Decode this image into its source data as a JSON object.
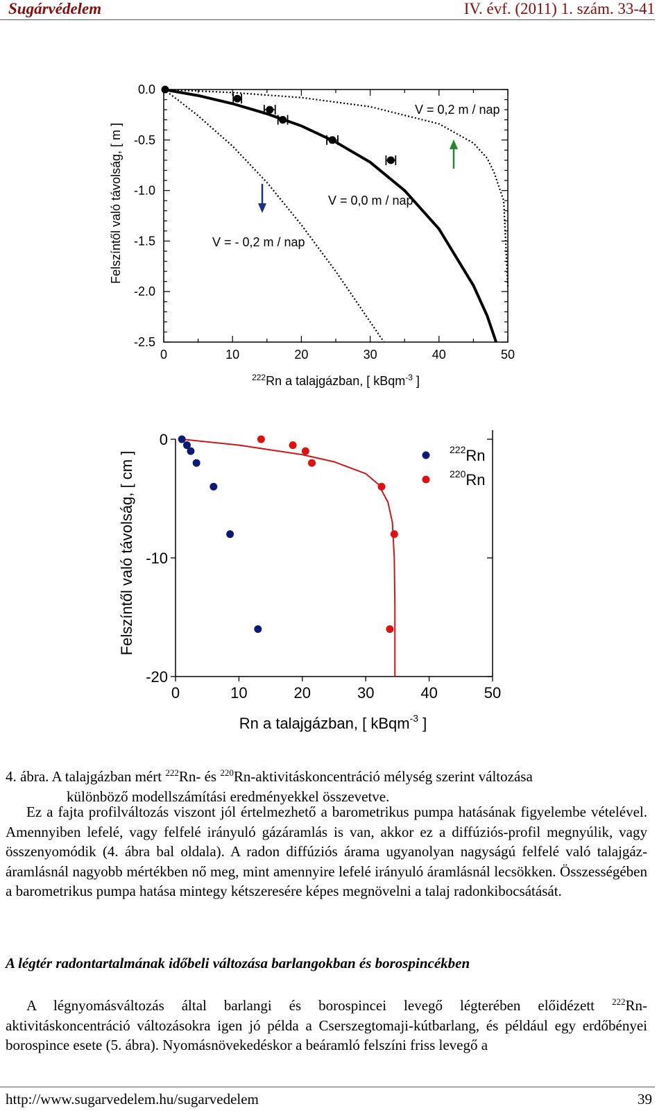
{
  "header": {
    "journal": "Sugárvédelem",
    "issue": "IV. évf. (2011) 1. szám. 33-41"
  },
  "figure1": {
    "ylabel": "Felszíntől való távolság, [ m ]",
    "xlabel_sup": "222",
    "xlabel_main": "Rn a talajgázban, [ kBqm",
    "xlabel_exp": "-3",
    "xlabel_end": " ]",
    "xticks": [
      "0",
      "10",
      "20",
      "30",
      "40",
      "50"
    ],
    "yticks": [
      "0.0",
      "-0.5",
      "-1.0",
      "-1.5",
      "-2.0",
      "-2.5"
    ],
    "annotations": {
      "v_pos": "V = 0,2 m / nap",
      "v_zero": "V = 0,0 m / nap",
      "v_neg": "V = - 0,2 m / nap"
    }
  },
  "figure2": {
    "ylabel": "Felszíntől való távolság, [ cm ]",
    "xlabel_main": "Rn a talajgázban, [ kBqm",
    "xlabel_exp": "-3",
    "xlabel_end": " ]",
    "xticks": [
      "0",
      "10",
      "20",
      "30",
      "40",
      "50"
    ],
    "yticks": [
      "0",
      "-10",
      "-20"
    ],
    "legend": [
      {
        "sup": "222",
        "label": "Rn",
        "color": "#0b1a78"
      },
      {
        "sup": "220",
        "label": "Rn",
        "color": "#e01010"
      }
    ]
  },
  "chart_data": [
    {
      "type": "line",
      "xlabel": "222Rn a talajgázban, [ kBqm-3 ]",
      "ylabel": "Felszíntől való távolság, [ m ]",
      "xlim": [
        0,
        50
      ],
      "ylim": [
        -2.5,
        0.0
      ],
      "series": [
        {
          "name": "V = 0,0 m / nap",
          "x": [
            0,
            5,
            10,
            15,
            20,
            25,
            30,
            35,
            40,
            45,
            47,
            48.3
          ],
          "y": [
            0,
            -0.06,
            -0.14,
            -0.24,
            -0.36,
            -0.52,
            -0.72,
            -1.0,
            -1.38,
            -1.94,
            -2.24,
            -2.5
          ]
        },
        {
          "name": "V = 0,2 m / nap",
          "x": [
            0,
            10,
            20,
            30,
            40,
            45,
            47,
            48,
            49.4,
            50
          ],
          "y": [
            0,
            -0.03,
            -0.08,
            -0.17,
            -0.34,
            -0.53,
            -0.68,
            -0.82,
            -1.1,
            -1.95
          ]
        },
        {
          "name": "V = - 0,2 m / nap",
          "x": [
            0,
            2,
            5,
            10,
            15,
            20,
            25,
            32
          ],
          "y": [
            0,
            -0.1,
            -0.26,
            -0.56,
            -0.92,
            -1.34,
            -1.8,
            -2.5
          ]
        },
        {
          "name": "",
          "x": [
            0.2,
            10.7,
            15.4,
            17.3,
            24.5,
            33.0
          ],
          "y": [
            0,
            -0.09,
            -0.2,
            -0.3,
            -0.5,
            -0.7
          ],
          "xerr": [
            0,
            0.6,
            0.8,
            0.7,
            0.8,
            0.7
          ]
        }
      ]
    },
    {
      "type": "scatter",
      "xlabel": "Rn a talajgázban, [ kBqm-3 ]",
      "ylabel": "Felszíntől való távolság, [ cm ]",
      "xlim": [
        0,
        50
      ],
      "ylim": [
        -20,
        0
      ],
      "series": [
        {
          "name": "222Rn",
          "x": [
            1,
            1.8,
            2.4,
            3.3,
            6,
            8.6,
            13
          ],
          "y": [
            0,
            -0.5,
            -1,
            -2,
            -4,
            -8,
            -16
          ]
        },
        {
          "name": "220Rn",
          "x": [
            13.5,
            18.5,
            20.5,
            21.5,
            32.5,
            34.5,
            33.8
          ],
          "y": [
            0,
            -0.5,
            -1,
            -2,
            -4,
            -8,
            -16
          ]
        },
        {
          "name": "",
          "x": [
            1,
            10,
            20,
            25,
            30,
            32,
            33.5,
            34.2,
            34.5,
            34.6,
            34.6
          ],
          "y": [
            0,
            -0.5,
            -1.3,
            -1.9,
            -2.9,
            -3.8,
            -5.3,
            -7,
            -10,
            -14,
            -20
          ]
        }
      ]
    }
  ],
  "caption": {
    "prefix": "4. ábra. A talajgázban mért ",
    "sup1": "222",
    "mid": "Rn- és ",
    "sup2": "220",
    "rest": "Rn-aktivitáskoncentráció mélység szerint változása",
    "line2": "különböző modellszámítási eredményekkel összevetve."
  },
  "paragraph1": "Ez a fajta profilváltozás viszont jól értelmezhető a barometrikus pumpa hatásának figyelembe vételével. Amennyiben lefelé, vagy felfelé irányuló gázáramlás is van, akkor ez a diffúziós-profil megnyúlik, vagy összenyomódik (4. ábra bal oldala). A radon diffúziós árama ugyanolyan nagyságú felfelé való talajgáz-áramlásnál nagyobb mértékben nő meg, mint amennyire lefelé irányuló áramlásnál lecsökken. Összességében a barometrikus pumpa hatása mintegy kétszeresére képes megnövelni a talaj radonkibocsátását.",
  "heading": "A légtér radontartalmának időbeli változása barlangokban és borospincékben",
  "paragraph2": {
    "pre": "A légnyomásváltozás által barlangi és borospincei levegő légterében előidézett ",
    "sup": "222",
    "post": "Rn-aktivitáskoncentráció változásokra igen jó példa a Cserszegtomaji-kútbarlang, és például egy erdőbényei borospince esete (5. ábra). Nyomásnövekedéskor a beáramló felszíni friss levegő a"
  },
  "footer": {
    "url": "http://www.sugarvedelem.hu/sugarvedelem",
    "page": "39"
  }
}
